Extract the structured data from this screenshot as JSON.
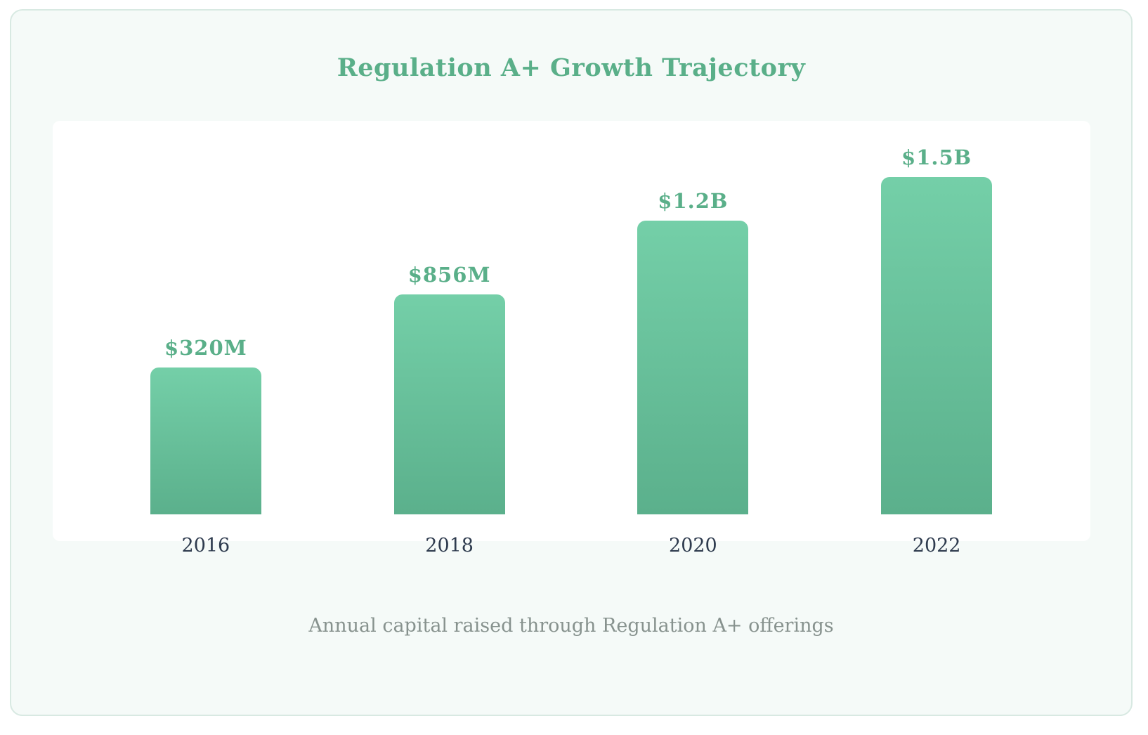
{
  "title": "Regulation A+ Growth Trajectory",
  "caption": "Annual capital raised through Regulation A+ offerings",
  "chart_data": {
    "type": "bar",
    "title": "Regulation A+ Growth Trajectory",
    "subtitle": "Annual capital raised through Regulation A+ offerings",
    "categories": [
      "2016",
      "2018",
      "2020",
      "2022"
    ],
    "values": [
      320,
      856,
      1200,
      1500
    ],
    "values_unit": "USD millions (read from data labels)",
    "value_labels": [
      "$320M",
      "$856M",
      "$1.2B",
      "$1.5B"
    ],
    "xlabel": "",
    "ylabel": "",
    "grid": false,
    "axes_visible": false,
    "legend_position": "none",
    "bar_display_height_pct": [
      40,
      60,
      80,
      100
    ]
  },
  "colors": {
    "accent_green": "#5aaf89",
    "bar_gradient_top": "#74cfa8",
    "bar_gradient_bottom": "#5bb08c",
    "year_label_text": "#2e3b4e",
    "caption_text": "#87928e",
    "card_background": "#f5faf8",
    "card_border": "#d8e9e2",
    "plot_background": "#ffffff"
  }
}
